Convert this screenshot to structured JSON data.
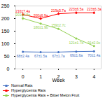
{
  "chart_data": {
    "type": "line",
    "xlabel": "Week",
    "x": [
      0,
      1,
      2,
      3,
      4
    ],
    "xlim": [
      -0.4,
      4.4
    ],
    "xticks": [
      0,
      1,
      2,
      3,
      4
    ],
    "ylim": [
      0,
      250
    ],
    "yticks": [
      0,
      50,
      100,
      150,
      200,
      250
    ],
    "marker": "circle",
    "data_labels": true,
    "legend": "bottom",
    "series": [
      {
        "name": "Normal Rats",
        "color": "#4472c4",
        "values": [
          68,
          67,
          67,
          69,
          70
        ],
        "errors": [
          2.4,
          1.5,
          1.7,
          1.6,
          1.4
        ],
        "value_labels": [
          "68±2.4a",
          "67±1.5a",
          "67±1.7a",
          "69±1.6a",
          "70±1.4a"
        ]
      },
      {
        "name": "Hyperglycemia Rats",
        "color": "#ff0000",
        "values": [
          216,
          200,
          219,
          223,
          223
        ],
        "errors": [
          7.4,
          6.9,
          5.7,
          6.5,
          6.3
        ],
        "value_labels": [
          "216±7.4a",
          "200±6.9a",
          "219±5.7a",
          "223±6.5a",
          "223±6.3a"
        ]
      },
      {
        "name": "Hyperglycemia Rats + Bitter Melon Fruit",
        "color": "#92d050",
        "values": [
          201,
          180,
          159,
          121,
          91
        ],
        "errors": [
          8.8,
          1.9,
          2.7,
          1.7,
          2.0
        ],
        "value_labels": [
          "201±8.8a",
          "180±1.9b",
          "159±2.7c",
          "121±1.7d",
          "91±2.0e"
        ]
      }
    ]
  }
}
